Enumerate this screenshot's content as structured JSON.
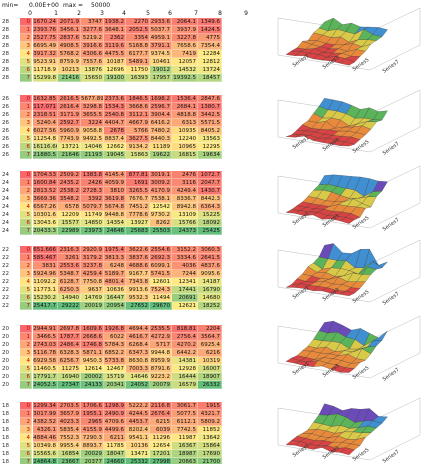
{
  "controls": {
    "min_label": "min=",
    "min_value": "0.00E+00",
    "max_label": "max =",
    "max_value": "50000"
  },
  "column_headers": [
    "0",
    "1",
    "2",
    "3",
    "4",
    "5",
    "6",
    "7",
    "8",
    "9"
  ],
  "blocks": [
    {
      "rows": [
        {
          "label": "28",
          "index": "0",
          "values": [
            "1670.24",
            "2071.9",
            "3747",
            "1938.2",
            "2270",
            "2933.6",
            "2064.1",
            "1349.6"
          ]
        },
        {
          "label": "28",
          "index": "1",
          "values": [
            "2393.76",
            "3456.1",
            "3277.6",
            "3648.1",
            "2052.5",
            "5037.7",
            "3937.9",
            "1424.5"
          ]
        },
        {
          "label": "28",
          "index": "2",
          "values": [
            "2527.75",
            "2837.6",
            "5219.2",
            "2362",
            "3354",
            "4959.1",
            "3227.8",
            "4775"
          ]
        },
        {
          "label": "28",
          "index": "3",
          "values": [
            "6695.49",
            "4908.5",
            "3916.6",
            "3119.6",
            "5168.8",
            "3791.1",
            "7658.6",
            "7354.4"
          ]
        },
        {
          "label": "28",
          "index": "4",
          "values": [
            "3917.32",
            "5768.2",
            "4306.6",
            "4475.5",
            "6177.7",
            "9374.5",
            "7419",
            "12284"
          ]
        },
        {
          "label": "28",
          "index": "5",
          "values": [
            "9523.91",
            "8759.9",
            "7557.6",
            "10187",
            "5489.1",
            "10461",
            "12057",
            "12812"
          ]
        },
        {
          "label": "28",
          "index": "6",
          "values": [
            "11718.9",
            "10213",
            "13876",
            "12696",
            "11750",
            "19012",
            "14532",
            "13724"
          ]
        },
        {
          "label": "28",
          "index": "7",
          "values": [
            "15299.8",
            "21416",
            "15650",
            "19100",
            "16393",
            "17957",
            "19392.5",
            "18457"
          ]
        }
      ]
    },
    {
      "rows": [
        {
          "label": "26",
          "index": "0",
          "values": [
            "1632.85",
            "2616.5",
            "5677.89",
            "2373.6",
            "1846.5",
            "1698.2",
            "1536.4",
            "2847.6"
          ]
        },
        {
          "label": "26",
          "index": "1",
          "values": [
            "117.071",
            "2616.4",
            "3298.8",
            "1534.3",
            "3668.6",
            "2596.7",
            "2684.1",
            "1380.7"
          ]
        },
        {
          "label": "26",
          "index": "2",
          "values": [
            "2318.51",
            "3171.9",
            "3655.5",
            "2540.8",
            "3112.1",
            "3904.4",
            "4818.8",
            "3442.5"
          ]
        },
        {
          "label": "26",
          "index": "3",
          "values": [
            "5240.4",
            "2592.7",
            "3224",
            "4404.7",
            "4667.9",
            "6416.2",
            "6313",
            "5571.5"
          ]
        },
        {
          "label": "26",
          "index": "4",
          "values": [
            "6027.56",
            "5960.9",
            "9058.8",
            "2678",
            "5766",
            "7480.2",
            "10935",
            "8405.2"
          ]
        },
        {
          "label": "26",
          "index": "5",
          "values": [
            "11254.8",
            "7743.9",
            "9492.5",
            "8837.4",
            "3627.5",
            "8440.3",
            "12240",
            "13563"
          ]
        },
        {
          "label": "26",
          "index": "6",
          "values": [
            "16116.66",
            "13721",
            "14046",
            "12662",
            "9134.2",
            "11189",
            "10965",
            "12295"
          ]
        },
        {
          "label": "26",
          "index": "7",
          "values": [
            "21880.5",
            "21646",
            "21193",
            "19045",
            "15863",
            "19622",
            "16815",
            "19634"
          ]
        }
      ]
    },
    {
      "rows": [
        {
          "label": "24",
          "index": "0",
          "values": [
            "1704.53",
            "2509.2",
            "1383.8",
            "4145.4",
            "877.81",
            "3019.1",
            "2476",
            "1072.7"
          ]
        },
        {
          "label": "24",
          "index": "1",
          "values": [
            "1600.84",
            "2435.2",
            "2426",
            "4059.9",
            "1691",
            "3009.2",
            "3116",
            "2047.7"
          ]
        },
        {
          "label": "24",
          "index": "2",
          "values": [
            "2813.52",
            "2538.2",
            "2728.3",
            "3810",
            "3265.5",
            "4170.9",
            "4249.4",
            "1430.7"
          ]
        },
        {
          "label": "24",
          "index": "3",
          "values": [
            "3669.36",
            "3548.2",
            "3392",
            "3619.8",
            "7676.7",
            "7538.1",
            "8336.7",
            "8442.3"
          ]
        },
        {
          "label": "24",
          "index": "4",
          "values": [
            "6567.26",
            "6578",
            "5079.7",
            "5674.8",
            "7451.2",
            "12542",
            "8942.8",
            "6364.3"
          ]
        },
        {
          "label": "24",
          "index": "5",
          "values": [
            "10301.6",
            "12209",
            "11749",
            "9448.8",
            "7778.6",
            "9730.2",
            "13109",
            "15225"
          ]
        },
        {
          "label": "24",
          "index": "6",
          "values": [
            "13043.6",
            "15577",
            "14850",
            "14354",
            "13927",
            "8262",
            "15766",
            "18092"
          ]
        },
        {
          "label": "24",
          "index": "7",
          "values": [
            "20433.3",
            "22989",
            "23973",
            "24646",
            "25683",
            "25503",
            "24373",
            "25425"
          ]
        }
      ]
    },
    {
      "rows": [
        {
          "label": "22",
          "index": "0",
          "values": [
            "651.666",
            "2316.3",
            "2920.9",
            "1975.4",
            "3622.6",
            "2554.6",
            "3152.2",
            "3060.3"
          ]
        },
        {
          "label": "22",
          "index": "1",
          "values": [
            "585.467",
            "3261",
            "3179.2",
            "3813.3",
            "3837.6",
            "2692.3",
            "3334.6",
            "2641.5"
          ]
        },
        {
          "label": "22",
          "index": "2",
          "values": [
            "3831",
            "2553.6",
            "3237.8",
            "6248",
            "4688.6",
            "6099.1",
            "4036",
            "4837.6"
          ]
        },
        {
          "label": "22",
          "index": "3",
          "values": [
            "5924.96",
            "5348.7",
            "4259.4",
            "5189.7",
            "9167.7",
            "5741.5",
            "7244",
            "9095.6"
          ]
        },
        {
          "label": "22",
          "index": "4",
          "values": [
            "11092.2",
            "6128.7",
            "7750.8",
            "4801.4",
            "7343.8",
            "12601",
            "12341",
            "14187"
          ]
        },
        {
          "label": "22",
          "index": "5",
          "values": [
            "11773.1",
            "6250.3",
            "9637",
            "10636",
            "9913.6",
            "7524.3",
            "17441",
            "16790"
          ]
        },
        {
          "label": "22",
          "index": "6",
          "values": [
            "15230.2",
            "14940",
            "14769",
            "16447",
            "9532.3",
            "11494",
            "20691",
            "14680"
          ]
        },
        {
          "label": "22",
          "index": "7",
          "values": [
            "25417.7",
            "29222",
            "20019",
            "20954",
            "27652",
            "29670",
            "12621",
            "18252"
          ]
        }
      ]
    },
    {
      "rows": [
        {
          "label": "20",
          "index": "0",
          "values": [
            "2944.91",
            "2697.8",
            "1609.6",
            "1926.8",
            "4694.4",
            "2535.5",
            "818.81",
            "2204"
          ]
        },
        {
          "label": "20",
          "index": "1",
          "values": [
            "3466.5",
            "1787.7",
            "2668.6",
            "6022",
            "4616.7",
            "4272.9",
            "2756.4",
            "3564.7"
          ]
        },
        {
          "label": "20",
          "index": "2",
          "values": [
            "2743.03",
            "2486.4",
            "1746.8",
            "5784.3",
            "6268.4",
            "5717",
            "4270.2",
            "6925.4"
          ]
        },
        {
          "label": "20",
          "index": "3",
          "values": [
            "5116.78",
            "6328.3",
            "5871.1",
            "6852.2",
            "6347.3",
            "9944.8",
            "6442.2",
            "6216"
          ]
        },
        {
          "label": "20",
          "index": "4",
          "values": [
            "6929.58",
            "6256.7",
            "9450.3",
            "5733.8",
            "8630.8",
            "8959.9",
            "14381",
            "10319"
          ]
        },
        {
          "label": "20",
          "index": "5",
          "values": [
            "11460.5",
            "11275",
            "12614",
            "12467",
            "7003.3",
            "8791.6",
            "12928",
            "16007"
          ]
        },
        {
          "label": "20",
          "index": "6",
          "values": [
            "17791.7",
            "16940",
            "20002",
            "15719",
            "14646",
            "9223.2",
            "16444",
            "18907"
          ]
        },
        {
          "label": "20",
          "index": "7",
          "values": [
            "24052.5",
            "27347",
            "24133",
            "20341",
            "24052",
            "20079",
            "16579",
            "26332"
          ]
        }
      ]
    },
    {
      "rows": [
        {
          "label": "18",
          "index": "0",
          "values": [
            "1299.34",
            "2703.5",
            "1706.6",
            "1298.9",
            "5222.2",
            "2116.8",
            "3061.7",
            "1915"
          ]
        },
        {
          "label": "18",
          "index": "1",
          "values": [
            "3017.99",
            "3657.9",
            "1955.1",
            "2490.9",
            "4244.5",
            "2676.4",
            "5077.5",
            "4321.7"
          ]
        },
        {
          "label": "18",
          "index": "2",
          "values": [
            "4382.52",
            "4023.3",
            "2965",
            "4709.6",
            "4453.7",
            "6215",
            "6112.1",
            "5809.2"
          ]
        },
        {
          "label": "18",
          "index": "3",
          "values": [
            "4326.1",
            "5835.4",
            "4155.9",
            "4499.6",
            "8202.4",
            "6039",
            "7742.5",
            "11852"
          ]
        },
        {
          "label": "18",
          "index": "4",
          "values": [
            "4884.46",
            "7552.3",
            "7290.3",
            "6211",
            "9541.1",
            "11296",
            "11987",
            "13642"
          ]
        },
        {
          "label": "18",
          "index": "5",
          "values": [
            "10349.8",
            "9955.4",
            "8893.7",
            "11785",
            "10136",
            "12654",
            "16367",
            "15864"
          ]
        },
        {
          "label": "18",
          "index": "6",
          "values": [
            "15565.6",
            "16854",
            "20029",
            "18047",
            "13471",
            "17201",
            "18987",
            "17690"
          ]
        },
        {
          "label": "18",
          "index": "7",
          "values": [
            "24864.8",
            "23667",
            "20377",
            "24660",
            "25332",
            "27998",
            "20663",
            "21700"
          ]
        }
      ]
    }
  ],
  "charts": [
    {
      "x_ticks": [
        "Series1",
        "Series3",
        "Series5",
        "Series7"
      ]
    },
    {
      "x_ticks": [
        "Series1",
        "Series3",
        "Series5",
        "Series7"
      ]
    },
    {
      "x_ticks": [
        "Series1",
        "Series3",
        "Series5",
        "Series7"
      ]
    },
    {
      "x_ticks": [
        "Series1",
        "Series3",
        "Series5",
        "Series7"
      ]
    },
    {
      "x_ticks": [
        "Series1",
        "Series3",
        "Series5",
        "Series7"
      ]
    },
    {
      "x_ticks": [
        "Series1",
        "Series3",
        "Series5",
        "Series7"
      ]
    }
  ],
  "colors": {
    "low": "#f8696b",
    "mid": "#ffeb84",
    "high": "#63be7b"
  }
}
